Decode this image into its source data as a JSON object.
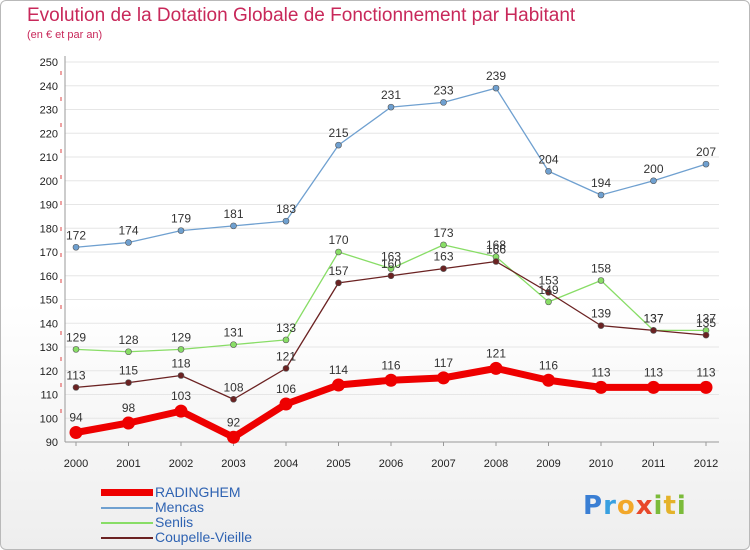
{
  "title": "Evolution de la Dotation Globale de Fonctionnement par Habitant",
  "subtitle": "(en € et par an)",
  "logo_text": "Proxiti",
  "chart_data": {
    "type": "line",
    "title": "Evolution de la Dotation Globale de Fonctionnement par Habitant",
    "ylabel": "(en € et par an)",
    "xlabel": "",
    "categories": [
      "2000",
      "2001",
      "2002",
      "2003",
      "2004",
      "2005",
      "2006",
      "2007",
      "2008",
      "2009",
      "2010",
      "2011",
      "2012"
    ],
    "ylim": [
      90,
      250
    ],
    "yticks": [
      90,
      100,
      110,
      120,
      130,
      140,
      150,
      160,
      170,
      180,
      190,
      200,
      210,
      220,
      230,
      240,
      250
    ],
    "grid": "horizontal",
    "legend_position": "bottom-left",
    "series": [
      {
        "name": "RADINGHEM",
        "color": "#ee0000",
        "values": [
          94,
          98,
          103,
          92,
          106,
          114,
          116,
          117,
          121,
          116,
          113,
          113,
          113
        ]
      },
      {
        "name": "Mencas",
        "color": "#6fa0d0",
        "values": [
          172,
          174,
          179,
          181,
          183,
          215,
          231,
          233,
          239,
          204,
          194,
          200,
          207
        ]
      },
      {
        "name": "Senlis",
        "color": "#88dd66",
        "values": [
          129,
          128,
          129,
          131,
          133,
          170,
          163,
          173,
          168,
          149,
          158,
          137,
          137
        ]
      },
      {
        "name": "Coupelle-Vieille",
        "color": "#6b2222",
        "values": [
          113,
          115,
          118,
          108,
          121,
          157,
          160,
          163,
          166,
          153,
          139,
          137,
          135
        ]
      }
    ]
  }
}
